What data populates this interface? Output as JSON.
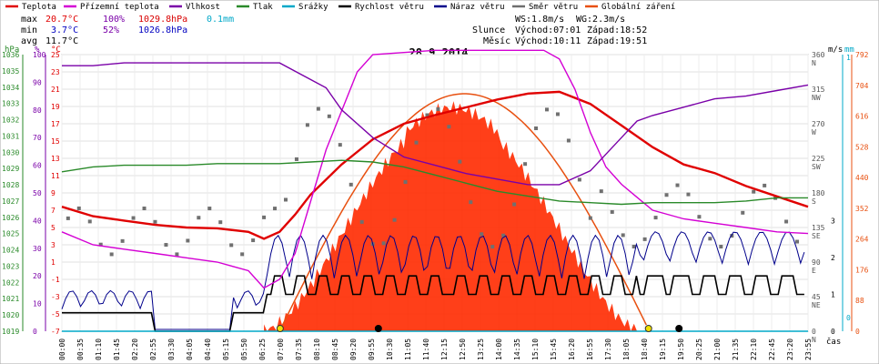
{
  "legend": [
    {
      "label": "Teplota",
      "color": "#e00000"
    },
    {
      "label": "Přízemní teplota",
      "color": "#d400d4"
    },
    {
      "label": "Vlhkost",
      "color": "#7a00a8"
    },
    {
      "label": "Tlak",
      "color": "#2a8a2a"
    },
    {
      "label": "Srážky",
      "color": "#00a8c8"
    },
    {
      "label": "Rychlost větru",
      "color": "#000000"
    },
    {
      "label": "Náraz větru",
      "color": "#00008b"
    },
    {
      "label": "Směr větru",
      "color": "#6e6e6e"
    },
    {
      "label": "Globální záření",
      "color": "#e85010"
    }
  ],
  "stats": {
    "max_label": "max",
    "max_temp": "20.7°C",
    "max_hum": "100%",
    "max_press": "1029.8hPa",
    "max_rain": "0.1mm",
    "min_label": "min",
    "min_temp": "3.7°C",
    "min_hum": "52%",
    "min_press": "1026.8hPa",
    "avg_label": "avg",
    "avg_temp": "11.7°C"
  },
  "info": {
    "ws": "WS:1.8m/s",
    "wg": "WG:2.3m/s",
    "sun_label": "Slunce",
    "sun_rise": "Východ:07:01",
    "sun_set": "Západ:18:52",
    "moon_label": "Měsíc",
    "moon_rise": "Východ:10:11",
    "moon_set": "Západ:19:51"
  },
  "chart_data": {
    "type": "line",
    "title": "28.9.2014",
    "x_unit": "čas",
    "axis_units": {
      "pressure": "hPa",
      "humidity": "%",
      "temperature": "°C",
      "wind": "m/s",
      "rain": "mm"
    },
    "x_ticks": [
      "00:00",
      "00:35",
      "01:10",
      "01:45",
      "02:20",
      "02:55",
      "03:30",
      "04:05",
      "04:40",
      "05:15",
      "05:50",
      "06:25",
      "07:00",
      "07:35",
      "08:10",
      "08:45",
      "09:20",
      "09:55",
      "10:30",
      "11:05",
      "11:40",
      "12:15",
      "12:50",
      "13:25",
      "14:00",
      "14:35",
      "15:10",
      "15:45",
      "16:20",
      "16:55",
      "17:30",
      "18:05",
      "18:40",
      "19:15",
      "19:50",
      "20:25",
      "21:00",
      "21:35",
      "22:10",
      "22:45",
      "23:20",
      "23:55"
    ],
    "pressure_ticks": [
      "1019",
      "1020",
      "1021",
      "1022",
      "1023",
      "1024",
      "1025",
      "1026",
      "1027",
      "1028",
      "1029",
      "1030",
      "1031",
      "1032",
      "1033",
      "1034",
      "1035",
      "1036"
    ],
    "humidity_ticks": [
      "0",
      "10",
      "20",
      "30",
      "40",
      "50",
      "60",
      "70",
      "80",
      "90",
      "100"
    ],
    "temperature_ticks": [
      "-7",
      "-5",
      "-3",
      "-1",
      "1",
      "3",
      "5",
      "7",
      "9",
      "11",
      "13",
      "15",
      "17",
      "19",
      "21",
      "23",
      "25"
    ],
    "wind_speed_ticks": [
      "0",
      "1",
      "2",
      "3"
    ],
    "wind_dir_ticks": [
      {
        "deg": "0",
        "dir": "N"
      },
      {
        "deg": "45",
        "dir": "NE"
      },
      {
        "deg": "90",
        "dir": "E"
      },
      {
        "deg": "135",
        "dir": "SE"
      },
      {
        "deg": "180",
        "dir": "S"
      },
      {
        "deg": "225",
        "dir": "SW"
      },
      {
        "deg": "270",
        "dir": "W"
      },
      {
        "deg": "315",
        "dir": "NW"
      },
      {
        "deg": "360",
        "dir": "N"
      }
    ],
    "rain_ticks": [
      "0",
      "1"
    ],
    "radiation_ticks": [
      "0",
      "88",
      "176",
      "264",
      "352",
      "440",
      "528",
      "616",
      "704",
      "792"
    ],
    "series": [
      {
        "name": "Teplota",
        "unit": "°C",
        "color": "#e00000",
        "x": [
          0,
          1,
          2,
          3,
          4,
          5,
          6,
          6.5,
          7,
          7.5,
          8,
          9,
          10,
          11,
          12,
          13,
          14,
          15,
          16,
          17,
          18,
          19,
          20,
          21,
          22,
          23,
          24
        ],
        "values": [
          7.4,
          6.3,
          5.8,
          5.3,
          5.0,
          4.9,
          4.5,
          3.7,
          4.5,
          6.5,
          8.8,
          12.3,
          15.2,
          17.0,
          18.0,
          18.9,
          19.8,
          20.5,
          20.7,
          19.3,
          16.8,
          14.3,
          12.3,
          11.3,
          9.8,
          8.6,
          7.4
        ]
      },
      {
        "name": "Přízemní teplota",
        "unit": "°C",
        "color": "#d400d4",
        "x": [
          0,
          1,
          2,
          3,
          4,
          5,
          6,
          6.5,
          7,
          7.5,
          8,
          8.5,
          9,
          9.5,
          10,
          12,
          14,
          15,
          15.5,
          16,
          16.5,
          17,
          17.5,
          18,
          18.5,
          19,
          20,
          21,
          22,
          23,
          24
        ],
        "values": [
          4.5,
          3.0,
          2.5,
          2.0,
          1.5,
          1.0,
          0.0,
          -2.0,
          -1.0,
          2.0,
          8.0,
          14.0,
          18.5,
          23.0,
          25.0,
          25.5,
          25.5,
          25.5,
          25.5,
          24.5,
          21.0,
          16.0,
          12.0,
          10.0,
          8.5,
          7.0,
          6.0,
          5.5,
          5.0,
          4.5,
          4.3
        ]
      },
      {
        "name": "Vlhkost",
        "unit": "%",
        "color": "#7a00a8",
        "x": [
          0,
          1,
          2,
          3,
          4,
          5,
          6,
          7,
          8,
          8.5,
          9,
          10,
          11,
          12,
          13,
          14,
          15,
          16,
          17,
          18,
          18.5,
          19,
          20,
          21,
          22,
          23,
          24
        ],
        "values": [
          96,
          96,
          97,
          97,
          97,
          97,
          97,
          97,
          91,
          88,
          80,
          70,
          63,
          60,
          57,
          55,
          53,
          53,
          58,
          70,
          76,
          78,
          81,
          84,
          85,
          87,
          89
        ]
      },
      {
        "name": "Tlak",
        "unit": "hPa",
        "color": "#2a8a2a",
        "x": [
          0,
          1,
          2,
          3,
          4,
          5,
          6,
          7,
          8,
          9,
          10,
          11,
          12,
          13,
          14,
          15,
          16,
          17,
          18,
          19,
          20,
          21,
          22,
          23,
          24
        ],
        "values": [
          1028.8,
          1029.1,
          1029.2,
          1029.2,
          1029.2,
          1029.3,
          1029.3,
          1029.3,
          1029.4,
          1029.5,
          1029.4,
          1029.1,
          1028.6,
          1028.1,
          1027.6,
          1027.3,
          1027.0,
          1026.9,
          1026.8,
          1026.9,
          1026.9,
          1026.9,
          1027.0,
          1027.2,
          1027.2
        ]
      },
      {
        "name": "Srážky",
        "unit": "mm",
        "color": "#00a8c8",
        "x": [
          0,
          24
        ],
        "values": [
          0,
          0
        ]
      }
    ]
  }
}
